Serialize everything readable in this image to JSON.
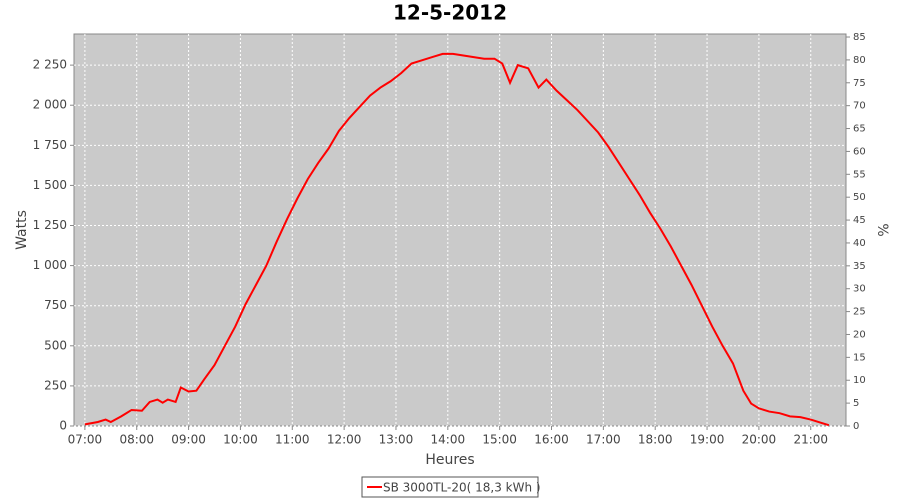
{
  "chart_data": {
    "type": "line",
    "title": "12-5-2012",
    "xlabel": "Heures",
    "ylabel": "Watts",
    "y2label": "%",
    "x": [
      7.0,
      7.25,
      7.4,
      7.5,
      7.7,
      7.9,
      8.1,
      8.25,
      8.4,
      8.5,
      8.6,
      8.75,
      8.85,
      9.0,
      9.15,
      9.3,
      9.5,
      9.7,
      9.9,
      10.1,
      10.3,
      10.5,
      10.7,
      10.9,
      11.1,
      11.3,
      11.5,
      11.7,
      11.9,
      12.1,
      12.3,
      12.5,
      12.7,
      12.9,
      13.1,
      13.3,
      13.5,
      13.7,
      13.9,
      14.1,
      14.3,
      14.5,
      14.7,
      14.9,
      15.05,
      15.2,
      15.35,
      15.55,
      15.75,
      15.9,
      16.1,
      16.3,
      16.5,
      16.7,
      16.9,
      17.1,
      17.3,
      17.5,
      17.7,
      17.9,
      18.1,
      18.3,
      18.5,
      18.7,
      18.9,
      19.1,
      19.3,
      19.5,
      19.7,
      19.85,
      20.0,
      20.2,
      20.4,
      20.6,
      20.8,
      21.0,
      21.2,
      21.35
    ],
    "series": [
      {
        "name": "SB 3000TL-20( 18,3 kWh )",
        "color": "#ff0000",
        "values": [
          10,
          25,
          40,
          25,
          60,
          100,
          95,
          150,
          165,
          145,
          165,
          150,
          240,
          215,
          220,
          290,
          380,
          500,
          620,
          760,
          880,
          1000,
          1150,
          1290,
          1420,
          1540,
          1640,
          1730,
          1840,
          1920,
          1990,
          2060,
          2110,
          2150,
          2200,
          2260,
          2280,
          2300,
          2320,
          2320,
          2310,
          2300,
          2290,
          2290,
          2260,
          2140,
          2250,
          2230,
          2110,
          2160,
          2090,
          2030,
          1970,
          1900,
          1830,
          1740,
          1640,
          1540,
          1440,
          1330,
          1230,
          1120,
          1000,
          880,
          750,
          620,
          500,
          390,
          220,
          140,
          110,
          90,
          80,
          60,
          55,
          40,
          20,
          5
        ]
      }
    ],
    "xlim": [
      6.79,
      21.68
    ],
    "xticks": [
      {
        "value": 7,
        "label": "07:00"
      },
      {
        "value": 8,
        "label": "08:00"
      },
      {
        "value": 9,
        "label": "09:00"
      },
      {
        "value": 10,
        "label": "10:00"
      },
      {
        "value": 11,
        "label": "11:00"
      },
      {
        "value": 12,
        "label": "12:00"
      },
      {
        "value": 13,
        "label": "13:00"
      },
      {
        "value": 14,
        "label": "14:00"
      },
      {
        "value": 15,
        "label": "15:00"
      },
      {
        "value": 16,
        "label": "16:00"
      },
      {
        "value": 17,
        "label": "17:00"
      },
      {
        "value": 18,
        "label": "18:00"
      },
      {
        "value": 19,
        "label": "19:00"
      },
      {
        "value": 20,
        "label": "20:00"
      },
      {
        "value": 21,
        "label": "21:00"
      }
    ],
    "ylim": [
      0,
      2444
    ],
    "yticks": [
      0,
      250,
      500,
      750,
      {
        "value": 1000,
        "label": "1 000"
      },
      {
        "value": 1250,
        "label": "1 250"
      },
      {
        "value": 1500,
        "label": "1 500"
      },
      {
        "value": 1750,
        "label": "1 750"
      },
      {
        "value": 2000,
        "label": "2 000"
      },
      {
        "value": 2250,
        "label": "2 250"
      }
    ],
    "y2lim": [
      0,
      85.66
    ],
    "y2ticks": [
      0,
      5,
      10,
      15,
      20,
      25,
      30,
      35,
      40,
      45,
      50,
      55,
      60,
      65,
      70,
      75,
      80,
      85
    ],
    "grid": true,
    "legend": "bottom"
  }
}
